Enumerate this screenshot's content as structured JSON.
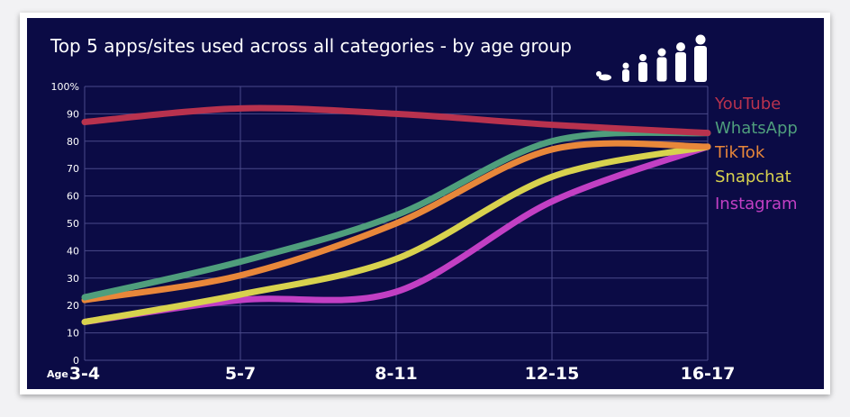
{
  "chart_data": {
    "type": "line",
    "title": "Top 5 apps/sites used across all categories - by age group",
    "xlabel": "Age",
    "ylabel": "",
    "categories": [
      "3-4",
      "5-7",
      "8-11",
      "12-15",
      "16-17"
    ],
    "ylim": [
      0,
      100
    ],
    "yticks": [
      "0",
      "10",
      "20",
      "30",
      "40",
      "50",
      "60",
      "70",
      "80",
      "90",
      "100%"
    ],
    "grid": true,
    "legend_position": "right",
    "series": [
      {
        "name": "YouTube",
        "color": "#b8324e",
        "values": [
          87,
          92,
          90,
          86,
          83
        ]
      },
      {
        "name": "WhatsApp",
        "color": "#4f9e7c",
        "values": [
          23,
          36,
          53,
          80,
          83
        ]
      },
      {
        "name": "TikTok",
        "color": "#e8873a",
        "values": [
          22,
          31,
          50,
          77,
          78
        ]
      },
      {
        "name": "Snapchat",
        "color": "#d8d24e",
        "values": [
          14,
          24,
          37,
          67,
          78
        ]
      },
      {
        "name": "Instagram",
        "color": "#c23fc4",
        "values": [
          14,
          22,
          25,
          58,
          78
        ]
      }
    ]
  },
  "colors": {
    "background": "#0b0b45",
    "grid": "#4a4a8a",
    "text": "#ffffff"
  },
  "icons": [
    "age-silhouettes-icon"
  ]
}
